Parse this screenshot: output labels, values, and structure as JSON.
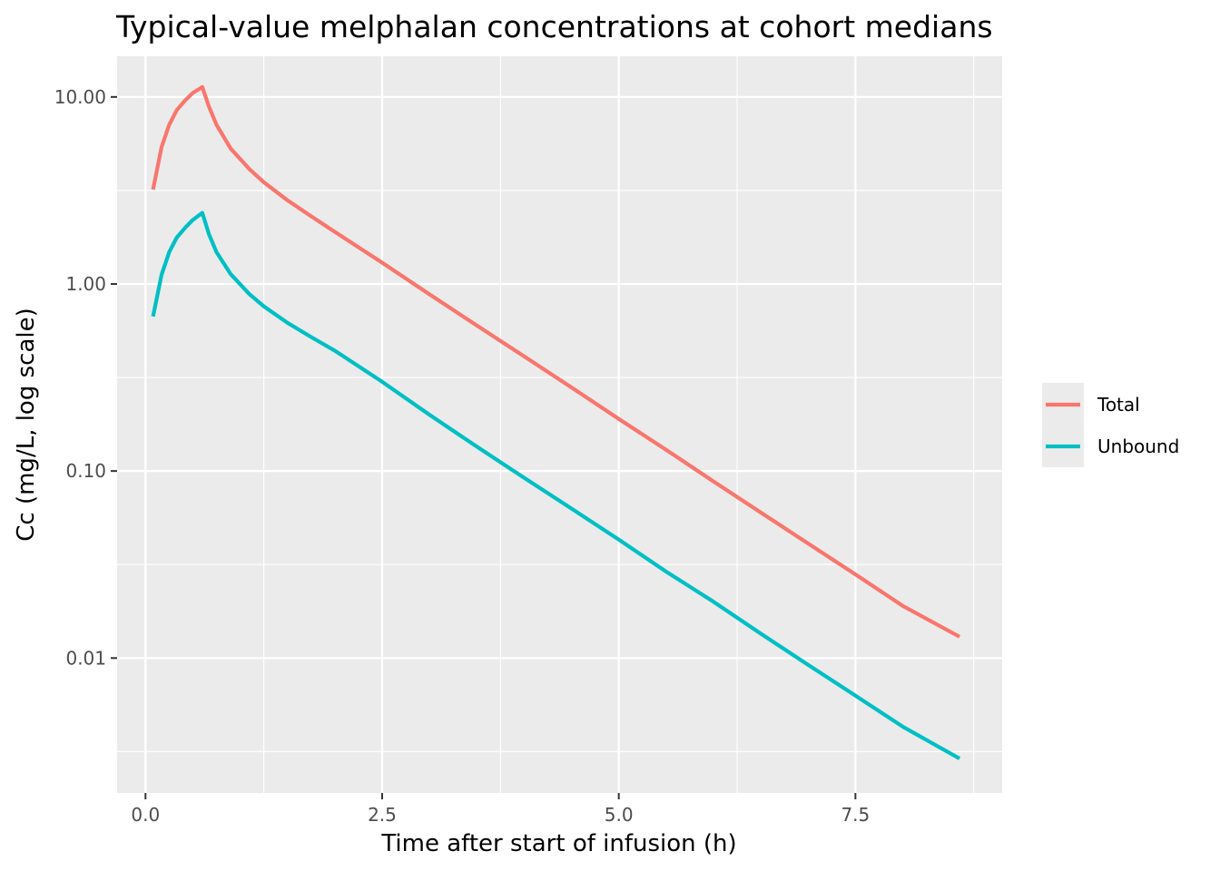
{
  "chart_data": {
    "type": "line",
    "title": "Typical-value melphalan concentrations at cohort medians",
    "xlabel": "Time after start of infusion (h)",
    "ylabel": "Cc (mg/L, log scale)",
    "xlim": [
      -0.3,
      9.05
    ],
    "ylim": [
      0.0019,
      16.5
    ],
    "yscale": "log",
    "xticks": [
      0,
      2.5,
      5,
      7.5
    ],
    "xtick_labels": [
      "0.0",
      "2.5",
      "5.0",
      "7.5"
    ],
    "yticks": [
      0.01,
      0.1,
      1,
      10
    ],
    "ytick_labels": [
      "0.01",
      "0.10",
      "1.00",
      "10.00"
    ],
    "grid": true,
    "legend_position": "right",
    "series": [
      {
        "name": "Total",
        "color": "#F8766D",
        "x": [
          0.08,
          0.17,
          0.25,
          0.33,
          0.42,
          0.5,
          0.6,
          0.67,
          0.75,
          0.9,
          1.1,
          1.25,
          1.5,
          1.75,
          2.0,
          2.5,
          3.0,
          3.5,
          4.0,
          4.5,
          5.0,
          5.5,
          6.0,
          6.5,
          7.0,
          7.5,
          8.0,
          8.6
        ],
        "values": [
          3.2,
          5.4,
          7.1,
          8.5,
          9.6,
          10.5,
          11.3,
          8.9,
          7.1,
          5.3,
          4.1,
          3.5,
          2.8,
          2.3,
          1.9,
          1.3,
          0.88,
          0.6,
          0.41,
          0.28,
          0.19,
          0.13,
          0.088,
          0.06,
          0.041,
          0.028,
          0.019,
          0.013
        ]
      },
      {
        "name": "Unbound",
        "color": "#00BFC4",
        "x": [
          0.08,
          0.17,
          0.25,
          0.33,
          0.42,
          0.5,
          0.6,
          0.67,
          0.75,
          0.9,
          1.1,
          1.25,
          1.5,
          1.75,
          2.0,
          2.5,
          3.0,
          3.5,
          4.0,
          4.5,
          5.0,
          5.5,
          6.0,
          6.5,
          7.0,
          7.5,
          8.0,
          8.6
        ],
        "values": [
          0.67,
          1.12,
          1.48,
          1.77,
          2.0,
          2.2,
          2.4,
          1.85,
          1.48,
          1.13,
          0.88,
          0.76,
          0.62,
          0.52,
          0.44,
          0.3,
          0.2,
          0.135,
          0.092,
          0.063,
          0.043,
          0.029,
          0.02,
          0.0135,
          0.0092,
          0.0063,
          0.0043,
          0.0029
        ]
      }
    ]
  }
}
